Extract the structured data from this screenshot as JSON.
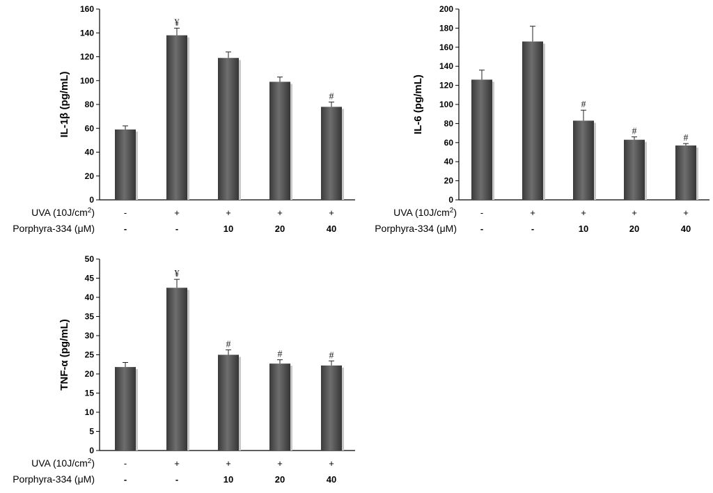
{
  "chart_data": [
    {
      "type": "bar",
      "ylabel": "IL-1β (pg/mL)",
      "ylim": [
        0,
        160
      ],
      "yticks": [
        0,
        20,
        40,
        60,
        80,
        100,
        120,
        140,
        160
      ],
      "values": [
        59,
        138,
        119,
        99,
        78
      ],
      "errors": [
        3,
        6,
        5,
        4,
        4
      ],
      "annotations": [
        "",
        "¥",
        "",
        "",
        "#"
      ],
      "row_labels": [
        "UVA (10J/cm2)",
        "Porphyra-334 (μM)"
      ],
      "uva": [
        "-",
        "+",
        "+",
        "+",
        "+"
      ],
      "porphyra": [
        "-",
        "-",
        "10",
        "20",
        "40"
      ]
    },
    {
      "type": "bar",
      "ylabel": "IL-6 (pg/mL)",
      "ylim": [
        0,
        200
      ],
      "yticks": [
        0,
        20,
        40,
        60,
        80,
        100,
        120,
        140,
        160,
        180,
        200
      ],
      "values": [
        126,
        166,
        83,
        63,
        57
      ],
      "errors": [
        10,
        16,
        11,
        3,
        2
      ],
      "annotations": [
        "",
        "",
        "#",
        "#",
        "#"
      ],
      "row_labels": [
        "UVA (10J/cm2)",
        "Porphyra-334 (μM)"
      ],
      "uva": [
        "-",
        "+",
        "+",
        "+",
        "+"
      ],
      "porphyra": [
        "-",
        "-",
        "10",
        "20",
        "40"
      ]
    },
    {
      "type": "bar",
      "ylabel": "TNF-α (pg/mL)",
      "ylim": [
        0,
        50
      ],
      "yticks": [
        0,
        5,
        10,
        15,
        20,
        25,
        30,
        35,
        40,
        45,
        50
      ],
      "values": [
        21.8,
        42.5,
        25,
        22.7,
        22.2
      ],
      "errors": [
        1.2,
        2.2,
        1.3,
        1.0,
        1.2
      ],
      "annotations": [
        "",
        "¥",
        "#",
        "#",
        "#"
      ],
      "row_labels": [
        "UVA (10J/cm2)",
        "Porphyra-334 (μM)"
      ],
      "uva": [
        "-",
        "+",
        "+",
        "+",
        "+"
      ],
      "porphyra": [
        "-",
        "-",
        "10",
        "20",
        "40"
      ]
    }
  ]
}
